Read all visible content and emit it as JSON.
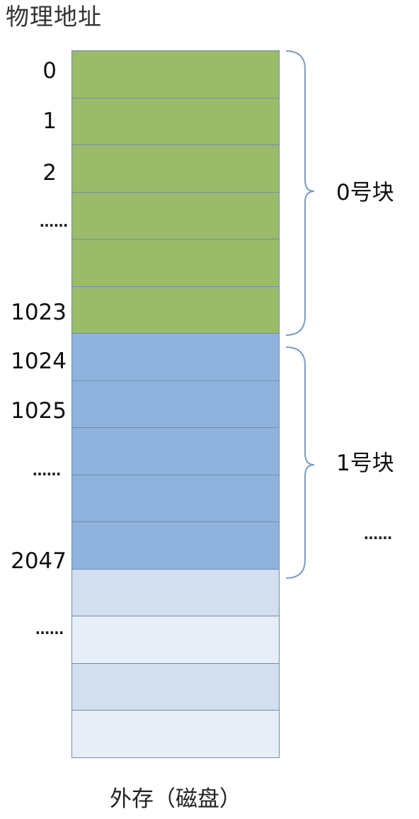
{
  "heading": "物理地址",
  "addresses": [
    "0",
    "1",
    "2",
    "1023",
    "1024",
    "1025",
    "2047"
  ],
  "ellipsis": "……",
  "blocks": [
    {
      "label": "0号块"
    },
    {
      "label": "1号块"
    }
  ],
  "caption": "外存（磁盘）",
  "cells": [
    {
      "group": "block-0",
      "color": "#9bbb6a"
    },
    {
      "group": "block-0",
      "color": "#9bbb6a"
    },
    {
      "group": "block-0",
      "color": "#9bbb6a"
    },
    {
      "group": "block-0",
      "color": "#9bbb6a"
    },
    {
      "group": "block-0",
      "color": "#9bbb6a"
    },
    {
      "group": "block-0",
      "color": "#9bbb6a"
    },
    {
      "group": "block-1",
      "color": "#8fb3dc"
    },
    {
      "group": "block-1",
      "color": "#8fb3dc"
    },
    {
      "group": "block-1",
      "color": "#8fb3dc"
    },
    {
      "group": "block-1",
      "color": "#8fb3dc"
    },
    {
      "group": "block-1",
      "color": "#8fb3dc"
    },
    {
      "group": "other",
      "color": "#d3deee"
    },
    {
      "group": "other",
      "color": "#e8eef7"
    },
    {
      "group": "other",
      "color": "#d3deee"
    },
    {
      "group": "other",
      "color": "#e8eef7"
    }
  ],
  "colors": {
    "cell_border": "#6b8cb0",
    "brace": "#7a9cc4"
  }
}
